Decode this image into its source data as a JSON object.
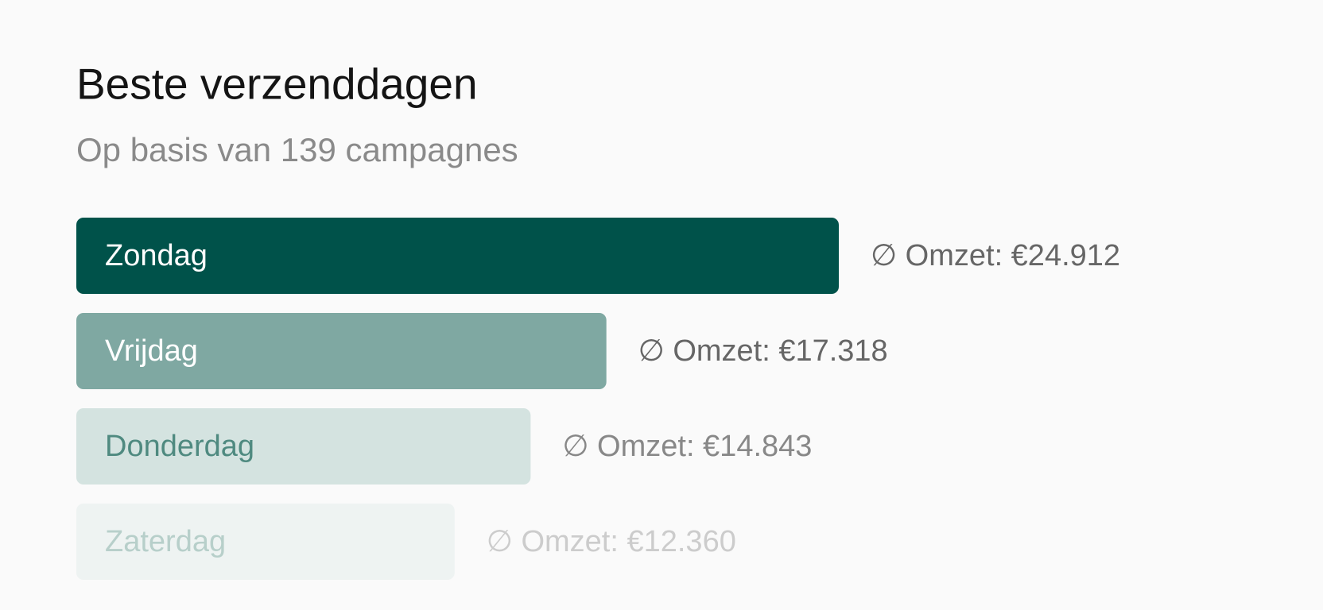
{
  "chart_data": {
    "type": "bar",
    "orientation": "horizontal",
    "title": "Beste verzenddagen",
    "subtitle": "Op basis van 139 campagnes",
    "categories": [
      "Zondag",
      "Vrijdag",
      "Donderdag",
      "Zaterdag"
    ],
    "values": [
      24912,
      17318,
      14843,
      12360
    ],
    "value_labels": [
      "∅ Omzet: €24.912",
      "∅ Omzet: €17.318",
      "∅ Omzet: €14.843",
      "∅ Omzet: €12.360"
    ],
    "colors": [
      "#00524a",
      "#7fa8a2",
      "#d4e3e0",
      "#eef3f2"
    ],
    "label_colors": [
      "#ffffff",
      "#ffffff",
      "#4f8a80",
      "#b7cfca"
    ],
    "value_label_colors": [
      "#666666",
      "#666666",
      "#888888",
      "#cccccc"
    ]
  }
}
